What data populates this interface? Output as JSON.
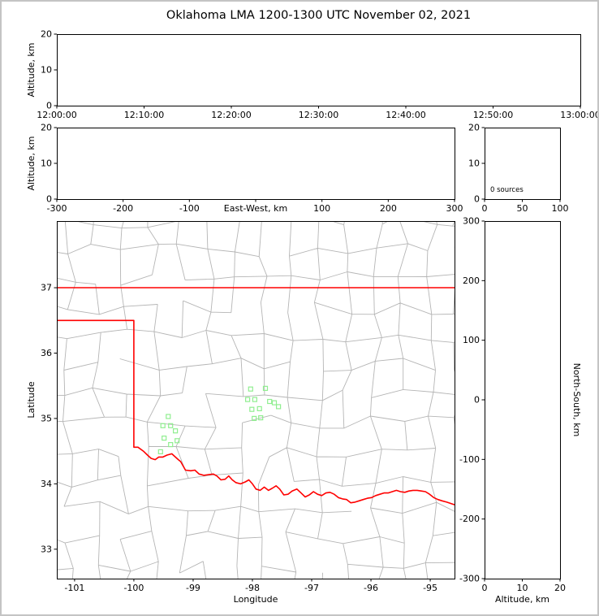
{
  "title": "Oklahoma LMA 1200-1300 UTC November 02, 2021",
  "colors": {
    "state_border": "#ff0000",
    "county_line": "#b5b5b5",
    "station": "#90ee90",
    "axis": "#000000",
    "background": "#ffffff"
  },
  "chart_data": [
    {
      "id": "time-height",
      "type": "scatter",
      "xlabel": "",
      "ylabel": "Altitude, km",
      "xlim": null,
      "xticks": {
        "values": null,
        "labels": [
          "12:00:00",
          "12:10:00",
          "12:20:00",
          "12:30:00",
          "12:40:00",
          "12:50:00",
          "13:00:00"
        ]
      },
      "ylim": [
        0,
        20
      ],
      "yticks": {
        "values": [
          0,
          10,
          20
        ],
        "labels": [
          "0",
          "10",
          "20"
        ]
      },
      "points": []
    },
    {
      "id": "ew-height",
      "type": "scatter",
      "xlabel": "East-West, km",
      "ylabel": "Altitude, km",
      "xlim": [
        -300,
        300
      ],
      "xticks": {
        "values": [
          -300,
          -200,
          -100,
          0,
          100,
          200,
          300
        ],
        "labels": [
          "-300",
          "-200",
          "-100",
          "",
          "100",
          "200",
          "300"
        ]
      },
      "ylim": [
        0,
        20
      ],
      "yticks": {
        "values": [
          0,
          10,
          20
        ],
        "labels": [
          "0",
          "10",
          "20"
        ]
      },
      "points": []
    },
    {
      "id": "source-count",
      "type": "line",
      "xlabel": "",
      "ylabel": "",
      "annotation": "0 sources",
      "xlim": [
        0,
        100
      ],
      "xticks": {
        "values": [
          0,
          50,
          100
        ],
        "labels": [
          "0",
          "50",
          "100"
        ]
      },
      "ylim": [
        0,
        20
      ],
      "yticks": {
        "values": [
          0,
          10,
          20
        ],
        "labels": [
          "0",
          "10",
          "20"
        ]
      },
      "points": []
    },
    {
      "id": "plan-view",
      "type": "scatter",
      "xlabel": "Longitude",
      "ylabel": "Latitude",
      "xlim": [
        -101.3,
        -94.59
      ],
      "xticks": {
        "values": [
          -101,
          -100,
          -99,
          -98,
          -97,
          -96,
          -95
        ],
        "labels": [
          "-101",
          "-100",
          "-99",
          "-98",
          "-97",
          "-96",
          "-95"
        ]
      },
      "ylim": [
        32.55,
        38.02
      ],
      "yticks": {
        "values": [
          33,
          34,
          35,
          36,
          37
        ],
        "labels": [
          "33",
          "34",
          "35",
          "36",
          "37"
        ]
      },
      "stations_lon_lat": [
        [
          -98.03,
          35.45
        ],
        [
          -97.78,
          35.46
        ],
        [
          -98.08,
          35.29
        ],
        [
          -97.96,
          35.29
        ],
        [
          -97.71,
          35.26
        ],
        [
          -97.63,
          35.24
        ],
        [
          -98.01,
          35.14
        ],
        [
          -97.88,
          35.15
        ],
        [
          -97.56,
          35.18
        ],
        [
          -97.97,
          35.0
        ],
        [
          -97.86,
          35.01
        ],
        [
          -99.42,
          35.03
        ],
        [
          -99.51,
          34.89
        ],
        [
          -99.38,
          34.89
        ],
        [
          -99.3,
          34.81
        ],
        [
          -99.49,
          34.7
        ],
        [
          -99.38,
          34.6
        ],
        [
          -99.55,
          34.49
        ],
        [
          -99.27,
          34.66
        ]
      ],
      "state_border_lon_lat": [
        [
          [
            -101.4,
            37.0
          ],
          [
            -94.5,
            37.0
          ]
        ],
        [
          [
            -101.4,
            36.5
          ],
          [
            -100.0,
            36.5
          ],
          [
            -100.0,
            34.56
          ],
          [
            -99.93,
            34.56
          ],
          [
            -99.84,
            34.5
          ],
          [
            -99.77,
            34.44
          ],
          [
            -99.71,
            34.39
          ],
          [
            -99.64,
            34.37
          ],
          [
            -99.58,
            34.41
          ],
          [
            -99.51,
            34.41
          ],
          [
            -99.44,
            34.44
          ],
          [
            -99.36,
            34.46
          ],
          [
            -99.3,
            34.41
          ],
          [
            -99.25,
            34.37
          ],
          [
            -99.21,
            34.34
          ],
          [
            -99.13,
            34.21
          ],
          [
            -99.04,
            34.2
          ],
          [
            -98.97,
            34.21
          ],
          [
            -98.9,
            34.15
          ],
          [
            -98.82,
            34.13
          ],
          [
            -98.74,
            34.14
          ],
          [
            -98.66,
            34.15
          ],
          [
            -98.6,
            34.12
          ],
          [
            -98.53,
            34.06
          ],
          [
            -98.46,
            34.07
          ],
          [
            -98.4,
            34.12
          ],
          [
            -98.34,
            34.06
          ],
          [
            -98.28,
            34.02
          ],
          [
            -98.2,
            34.0
          ],
          [
            -98.12,
            34.03
          ],
          [
            -98.06,
            34.06
          ],
          [
            -98.0,
            34.0
          ],
          [
            -97.94,
            33.92
          ],
          [
            -97.87,
            33.9
          ],
          [
            -97.8,
            33.95
          ],
          [
            -97.73,
            33.9
          ],
          [
            -97.67,
            33.93
          ],
          [
            -97.6,
            33.97
          ],
          [
            -97.54,
            33.92
          ],
          [
            -97.47,
            33.83
          ],
          [
            -97.4,
            33.84
          ],
          [
            -97.33,
            33.89
          ],
          [
            -97.25,
            33.92
          ],
          [
            -97.18,
            33.86
          ],
          [
            -97.11,
            33.8
          ],
          [
            -97.04,
            33.83
          ],
          [
            -96.97,
            33.88
          ],
          [
            -96.9,
            33.84
          ],
          [
            -96.83,
            33.82
          ],
          [
            -96.76,
            33.86
          ],
          [
            -96.69,
            33.87
          ],
          [
            -96.62,
            33.84
          ],
          [
            -96.55,
            33.79
          ],
          [
            -96.48,
            33.77
          ],
          [
            -96.41,
            33.76
          ],
          [
            -96.34,
            33.71
          ],
          [
            -96.27,
            33.72
          ],
          [
            -96.2,
            33.74
          ],
          [
            -96.13,
            33.76
          ],
          [
            -96.06,
            33.78
          ],
          [
            -95.99,
            33.79
          ],
          [
            -95.92,
            33.82
          ],
          [
            -95.85,
            33.84
          ],
          [
            -95.78,
            33.86
          ],
          [
            -95.71,
            33.86
          ],
          [
            -95.64,
            33.88
          ],
          [
            -95.57,
            33.9
          ],
          [
            -95.5,
            33.88
          ],
          [
            -95.43,
            33.87
          ],
          [
            -95.36,
            33.89
          ],
          [
            -95.29,
            33.9
          ],
          [
            -95.22,
            33.9
          ],
          [
            -95.15,
            33.89
          ],
          [
            -95.08,
            33.88
          ],
          [
            -95.01,
            33.84
          ],
          [
            -94.94,
            33.79
          ],
          [
            -94.87,
            33.76
          ],
          [
            -94.8,
            33.74
          ],
          [
            -94.72,
            33.72
          ],
          [
            -94.59,
            33.68
          ]
        ]
      ]
    },
    {
      "id": "ns-height",
      "type": "scatter",
      "xlabel": "Altitude, km",
      "ylabel": "North-South, km",
      "xlim": [
        0,
        20
      ],
      "xticks": {
        "values": [
          0,
          10,
          20
        ],
        "labels": [
          "0",
          "10",
          "20"
        ]
      },
      "ylim": [
        -300,
        300
      ],
      "yticks": {
        "values": [
          300,
          200,
          100,
          0,
          -100,
          -200,
          -300
        ],
        "labels": [
          "300",
          "200",
          "100",
          "0",
          "-100",
          "-200",
          "-300"
        ]
      },
      "points": []
    }
  ]
}
